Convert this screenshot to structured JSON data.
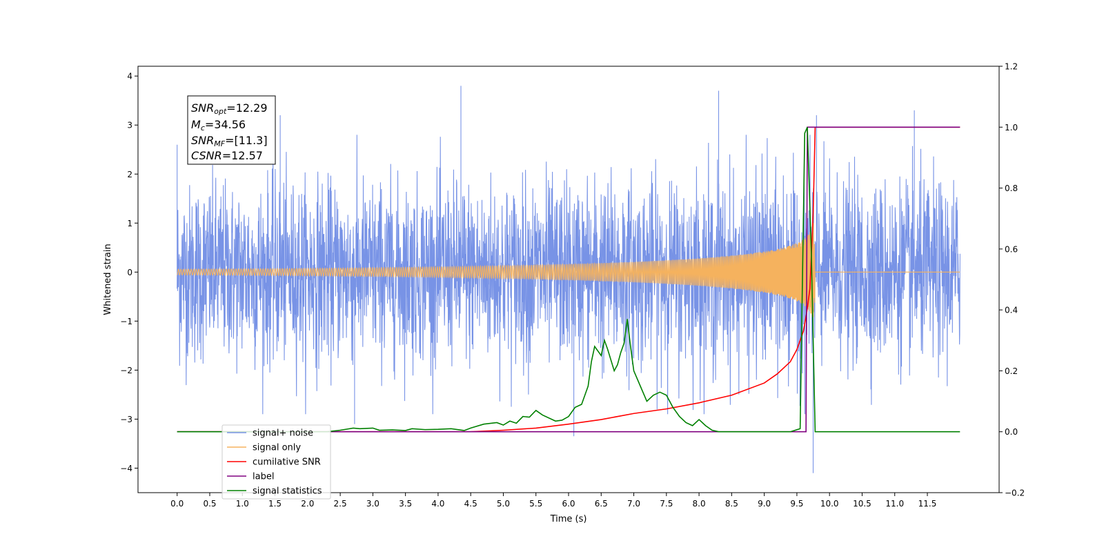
{
  "chart_data": {
    "type": "line",
    "xlabel": "Time (s)",
    "ylabel": "Whitened strain",
    "ylabel_right": "",
    "xlim": [
      -0.6,
      12.6
    ],
    "ylim": [
      -4.5,
      4.2
    ],
    "ylim_right": [
      -0.2,
      1.2
    ],
    "xticks": [
      "0.0",
      "0.5",
      "1.0",
      "1.5",
      "2.0",
      "2.5",
      "3.0",
      "3.5",
      "4.0",
      "4.5",
      "5.0",
      "5.5",
      "6.0",
      "6.5",
      "7.0",
      "7.5",
      "8.0",
      "8.5",
      "9.0",
      "9.5",
      "10.0",
      "10.5",
      "11.0",
      "11.5"
    ],
    "yticks": [
      "−4",
      "−3",
      "−2",
      "−1",
      "0",
      "1",
      "2",
      "3",
      "4"
    ],
    "yticks_right": [
      "−0.2",
      "0.0",
      "0.2",
      "0.4",
      "0.6",
      "0.8",
      "1.0",
      "1.2"
    ],
    "stats_box": {
      "snr_opt": "=12.29",
      "mc": "=34.56",
      "snr_mf": "=[11.3]",
      "csnr": "=12.57"
    },
    "legend": {
      "position": "lower-left",
      "entries": [
        "signal+ noise",
        "signal only",
        "cumilative SNR",
        "label",
        "signal statistics"
      ]
    },
    "series": [
      {
        "name": "signal+ noise",
        "axis": "left",
        "color": "#7893e6",
        "kind": "noise",
        "x_range": [
          0.0,
          12.0
        ],
        "amplitude_envelope": [
          -2.0,
          2.5
        ],
        "peaks": [
          [
            0.0,
            2.6
          ],
          [
            4.35,
            3.8
          ],
          [
            8.3,
            3.7
          ],
          [
            9.75,
            -4.1
          ],
          [
            9.8,
            3.2
          ],
          [
            6.08,
            -3.35
          ],
          [
            2.72,
            -3.1
          ],
          [
            1.58,
            3.2
          ],
          [
            11.3,
            3.3
          ]
        ]
      },
      {
        "name": "signal only",
        "axis": "left",
        "color": "#f5b25e",
        "kind": "chirp",
        "x_range": [
          0.0,
          12.0
        ],
        "merger_time": 9.78,
        "peak_amplitude": 1.25
      },
      {
        "name": "cumilative SNR",
        "axis": "right",
        "color": "#ff0000",
        "x": [
          0.0,
          4.5,
          5.0,
          5.5,
          6.0,
          6.5,
          7.0,
          7.5,
          8.0,
          8.5,
          9.0,
          9.2,
          9.4,
          9.5,
          9.6,
          9.65,
          9.7,
          9.75,
          9.78,
          12.0
        ],
        "y": [
          0.0,
          0.0,
          0.005,
          0.012,
          0.025,
          0.04,
          0.06,
          0.075,
          0.095,
          0.12,
          0.16,
          0.19,
          0.23,
          0.27,
          0.33,
          0.39,
          0.47,
          0.72,
          1.0,
          1.0
        ]
      },
      {
        "name": "label",
        "axis": "right",
        "color": "#800080",
        "x": [
          0.0,
          9.64,
          9.66,
          9.76,
          9.78,
          12.0
        ],
        "y": [
          0.0,
          0.0,
          1.0,
          1.0,
          1.0,
          1.0
        ]
      },
      {
        "name": "signal statistics",
        "axis": "right",
        "color": "#008000",
        "x": [
          0.0,
          2.3,
          2.5,
          2.7,
          2.8,
          3.0,
          3.1,
          3.3,
          3.5,
          3.6,
          3.8,
          4.0,
          4.2,
          4.4,
          4.5,
          4.7,
          4.9,
          5.0,
          5.1,
          5.2,
          5.3,
          5.4,
          5.5,
          5.6,
          5.8,
          5.9,
          6.0,
          6.1,
          6.2,
          6.3,
          6.35,
          6.4,
          6.5,
          6.55,
          6.6,
          6.7,
          6.75,
          6.8,
          6.85,
          6.9,
          6.95,
          7.0,
          7.1,
          7.2,
          7.3,
          7.4,
          7.5,
          7.6,
          7.7,
          7.8,
          7.9,
          8.0,
          8.1,
          8.2,
          8.3,
          8.5,
          9.0,
          9.4,
          9.55,
          9.62,
          9.66,
          9.72,
          9.78,
          9.8,
          12.0
        ],
        "y": [
          0.0,
          0.0,
          0.005,
          0.012,
          0.01,
          0.012,
          0.005,
          0.006,
          0.004,
          0.01,
          0.007,
          0.008,
          0.01,
          0.004,
          0.012,
          0.025,
          0.03,
          0.022,
          0.035,
          0.028,
          0.05,
          0.048,
          0.07,
          0.055,
          0.035,
          0.038,
          0.05,
          0.08,
          0.09,
          0.15,
          0.23,
          0.28,
          0.25,
          0.3,
          0.27,
          0.2,
          0.22,
          0.26,
          0.29,
          0.37,
          0.28,
          0.2,
          0.15,
          0.1,
          0.12,
          0.13,
          0.12,
          0.08,
          0.05,
          0.03,
          0.02,
          0.04,
          0.02,
          0.005,
          0.0,
          0.0,
          0.0,
          0.0,
          0.01,
          0.98,
          1.0,
          0.6,
          0.0,
          0.0,
          0.0
        ]
      }
    ]
  }
}
